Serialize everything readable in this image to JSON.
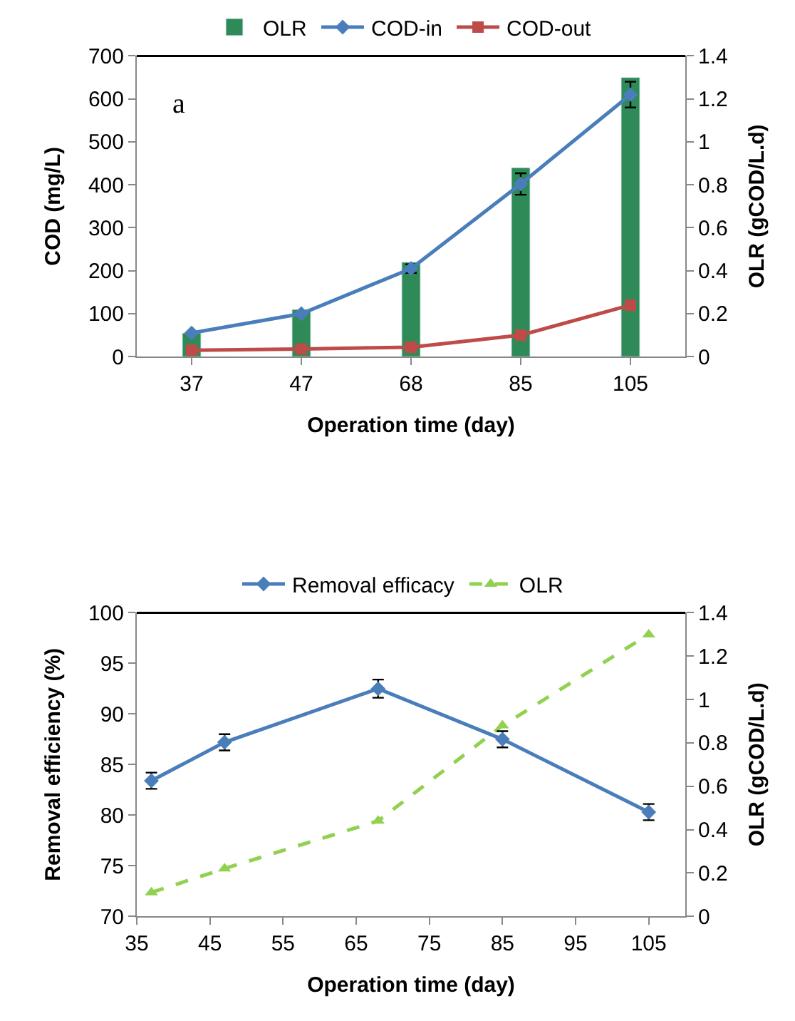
{
  "chart_data": [
    {
      "type": "line",
      "xlabel": "Operation time (day)",
      "ylabel": "COD (mg/L)",
      "y2label": "OLR (gCOD/L.d)",
      "annotations": [
        "a"
      ],
      "categories": [
        "37",
        "47",
        "68",
        "85",
        "105"
      ],
      "ylim": [
        0,
        700
      ],
      "yticks": [
        0,
        100,
        200,
        300,
        400,
        500,
        600,
        700
      ],
      "y2lim": [
        0,
        1.4
      ],
      "y2ticks": [
        0,
        0.2,
        0.4,
        0.6,
        0.8,
        1,
        1.2,
        1.4
      ],
      "legend": "top",
      "series": [
        {
          "name": "OLR",
          "type": "bar",
          "axis": "y2",
          "color": "#2e8b57",
          "values": [
            0.11,
            0.22,
            0.44,
            0.88,
            1.3
          ]
        },
        {
          "name": "COD-in",
          "color": "#4a7ebb",
          "marker": "diamond",
          "values": [
            55,
            100,
            205,
            402,
            610
          ],
          "errors": [
            null,
            null,
            10,
            25,
            30
          ]
        },
        {
          "name": "COD-out",
          "color": "#be4b48",
          "marker": "square",
          "values": [
            15,
            18,
            22,
            50,
            120
          ]
        }
      ]
    },
    {
      "type": "line",
      "xlabel": "Operation time (day)",
      "ylabel": "Removal efficiency (%)",
      "y2label": "OLR (gCOD/L.d)",
      "x": [
        37,
        47,
        68,
        85,
        105
      ],
      "xlim": [
        35,
        110
      ],
      "xticks": [
        35,
        45,
        55,
        65,
        75,
        85,
        95,
        105
      ],
      "ylim": [
        70,
        100
      ],
      "yticks": [
        70,
        75,
        80,
        85,
        90,
        95,
        100
      ],
      "y2lim": [
        0,
        1.4
      ],
      "y2ticks": [
        0,
        0.2,
        0.4,
        0.6,
        0.8,
        1,
        1.2,
        1.4
      ],
      "legend": "top",
      "series": [
        {
          "name": "Removal efficacy",
          "color": "#4a7ebb",
          "marker": "diamond",
          "line_style": "solid",
          "values": [
            83.4,
            87.2,
            92.5,
            87.5,
            80.3
          ],
          "errors": [
            0.8,
            0.8,
            0.9,
            0.8,
            0.8
          ]
        },
        {
          "name": "OLR",
          "color": "#92d050",
          "marker": "triangle",
          "line_style": "dashed",
          "axis": "y2",
          "values": [
            0.11,
            0.22,
            0.44,
            0.88,
            1.3
          ]
        }
      ]
    }
  ]
}
